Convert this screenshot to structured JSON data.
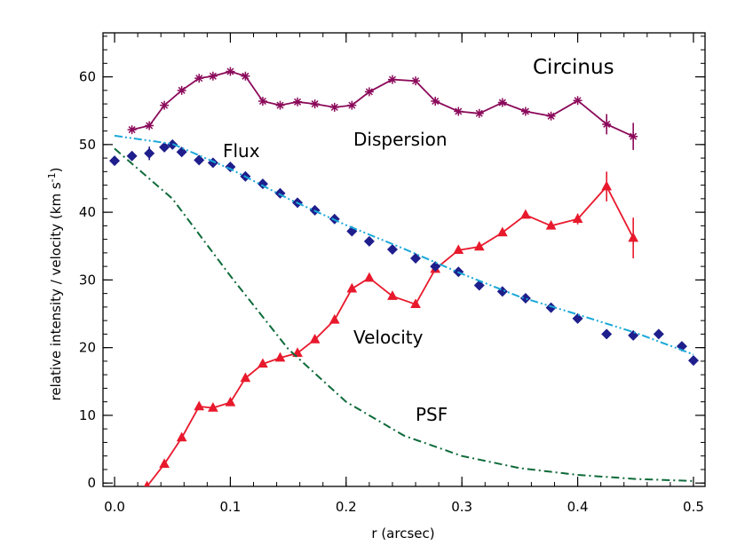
{
  "chart_data": {
    "type": "line",
    "title": "Circinus",
    "xlabel": "r (arcsec)",
    "ylabel_main": "relative intensity / velocity (km s",
    "ylabel_sup": "-1",
    "ylabel_tail": ")",
    "xlim": [
      -0.01,
      0.51
    ],
    "ylim": [
      -0.5,
      66.5
    ],
    "xticks": [
      "0.0",
      "0.1",
      "0.2",
      "0.3",
      "0.4",
      "0.5"
    ],
    "yticks": [
      "0",
      "10",
      "20",
      "30",
      "40",
      "50",
      "60"
    ],
    "xtick_values": [
      0.0,
      0.1,
      0.2,
      0.3,
      0.4,
      0.5
    ],
    "ytick_values": [
      0,
      10,
      20,
      30,
      40,
      50,
      60
    ],
    "x_minor_step": 0.02,
    "y_minor_step": 2,
    "annotations": {
      "flux": "Flux",
      "dispersion": "Dispersion",
      "velocity": "Velocity",
      "psf": "PSF"
    },
    "series": [
      {
        "key": "dispersion",
        "color": "#8b0a5a",
        "marker": "asterisk",
        "x": [
          0.015,
          0.03,
          0.043,
          0.058,
          0.073,
          0.085,
          0.1,
          0.113,
          0.128,
          0.143,
          0.158,
          0.173,
          0.19,
          0.205,
          0.22,
          0.24,
          0.26,
          0.277,
          0.297,
          0.315,
          0.335,
          0.355,
          0.377,
          0.4,
          0.425,
          0.448
        ],
        "y": [
          52.2,
          52.8,
          55.8,
          58.0,
          59.8,
          60.1,
          60.8,
          60.1,
          56.4,
          55.8,
          56.3,
          56.0,
          55.5,
          55.8,
          57.8,
          59.6,
          59.4,
          56.4,
          54.9,
          54.6,
          56.2,
          54.9,
          54.2,
          56.5,
          53.0,
          51.2
        ],
        "err": [
          0,
          0,
          0,
          0,
          0,
          0,
          0,
          0,
          0,
          0,
          0,
          0,
          0,
          0,
          0,
          0,
          0,
          0,
          0,
          0,
          0,
          0,
          0,
          0,
          1.5,
          2.0
        ]
      },
      {
        "key": "velocity",
        "color": "#e8192c",
        "marker": "triangle",
        "x": [
          0.028,
          0.043,
          0.058,
          0.073,
          0.085,
          0.1,
          0.113,
          0.128,
          0.143,
          0.158,
          0.173,
          0.19,
          0.205,
          0.22,
          0.24,
          0.26,
          0.277,
          0.297,
          0.315,
          0.335,
          0.355,
          0.377,
          0.4,
          0.425,
          0.448
        ],
        "y": [
          -0.5,
          2.8,
          6.7,
          11.3,
          11.1,
          11.9,
          15.5,
          17.6,
          18.5,
          19.2,
          21.2,
          24.1,
          28.7,
          30.3,
          27.6,
          26.4,
          31.6,
          34.4,
          34.9,
          37.0,
          39.6,
          38.0,
          39.0,
          43.8,
          36.2
        ],
        "err": [
          0,
          0,
          0,
          0,
          0,
          0,
          0,
          0,
          0,
          0,
          0,
          0,
          0,
          0,
          0,
          0,
          0,
          0,
          0,
          0,
          0,
          0,
          0.8,
          2.2,
          3.0
        ]
      },
      {
        "key": "flux",
        "color": "#1e1e8c",
        "marker": "diamond",
        "x": [
          0.0,
          0.015,
          0.03,
          0.043,
          0.05,
          0.058,
          0.073,
          0.085,
          0.1,
          0.113,
          0.128,
          0.143,
          0.158,
          0.173,
          0.19,
          0.205,
          0.22,
          0.24,
          0.26,
          0.277,
          0.297,
          0.315,
          0.335,
          0.355,
          0.377,
          0.4,
          0.425,
          0.448,
          0.47,
          0.49,
          0.5
        ],
        "y": [
          47.6,
          48.3,
          48.7,
          49.6,
          50.0,
          48.9,
          47.7,
          47.3,
          46.7,
          45.3,
          44.2,
          42.8,
          41.4,
          40.3,
          39.0,
          37.2,
          35.7,
          34.5,
          33.2,
          32.0,
          31.2,
          29.2,
          28.3,
          27.3,
          25.9,
          24.3,
          22.0,
          21.8,
          22.0,
          20.2,
          18.1
        ],
        "err": [
          0,
          0,
          1.0,
          0,
          0,
          0,
          0,
          0,
          0,
          0,
          0,
          0,
          0,
          0,
          0,
          0,
          0,
          0,
          0,
          0,
          0,
          0,
          0,
          0,
          0,
          0,
          0,
          0,
          0,
          0,
          0
        ]
      },
      {
        "key": "flux_model",
        "color": "#1aa8d8",
        "style": "dash-dot-dot",
        "x": [
          0.0,
          0.05,
          0.1,
          0.15,
          0.2,
          0.25,
          0.3,
          0.35,
          0.4,
          0.45,
          0.5
        ],
        "y": [
          51.3,
          50.1,
          46.4,
          42.0,
          38.1,
          34.6,
          30.9,
          27.5,
          24.9,
          22.2,
          19.0
        ]
      },
      {
        "key": "psf",
        "color": "#0e6b3a",
        "style": "dash-dot",
        "x": [
          0.0,
          0.05,
          0.1,
          0.15,
          0.2,
          0.25,
          0.3,
          0.35,
          0.4,
          0.45,
          0.5
        ],
        "y": [
          49.4,
          42.0,
          30.6,
          19.8,
          12.0,
          7.0,
          4.0,
          2.2,
          1.2,
          0.6,
          0.3
        ]
      }
    ]
  }
}
